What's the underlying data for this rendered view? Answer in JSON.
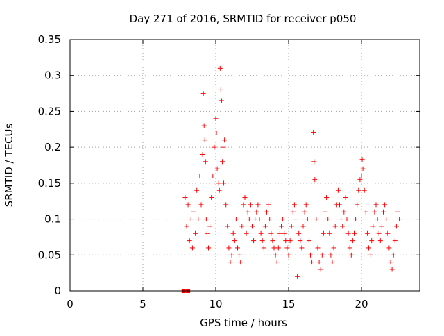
{
  "chart_data": {
    "type": "scatter",
    "title": "Day 271 of 2016, SRMTID for receiver p050",
    "xlabel": "GPS time / hours",
    "ylabel": "SRMTID / TECUs",
    "xlim": [
      0,
      24
    ],
    "ylim": [
      0,
      0.35
    ],
    "xticks": [
      "0",
      "5",
      "10",
      "15",
      "20"
    ],
    "yticks": [
      "0",
      "0.05",
      "0.1",
      "0.15",
      "0.2",
      "0.25",
      "0.3",
      "0.35"
    ],
    "grid": true,
    "legend": "none",
    "marker": "plus",
    "color": "#ff0000",
    "zero_markers": {
      "marker": "square",
      "x": [
        7.8,
        8.1
      ],
      "y": [
        0,
        0
      ]
    },
    "series": [
      {
        "x": [
          7.9,
          8.0,
          8.1,
          8.2,
          8.3,
          8.4,
          8.5,
          8.6,
          8.7,
          8.8,
          8.9,
          9.0,
          9.1,
          9.15,
          9.2,
          9.25,
          9.3,
          9.35,
          9.4,
          9.5,
          9.6,
          9.7,
          9.8,
          9.9,
          10.0,
          10.05,
          10.1,
          10.2,
          10.25,
          10.3,
          10.35,
          10.4,
          10.45,
          10.5,
          10.55,
          10.6,
          10.7,
          10.8,
          10.9,
          11.0,
          11.1,
          11.2,
          11.3,
          11.4,
          11.5,
          11.6,
          11.7,
          11.8,
          11.9,
          12.0,
          12.1,
          12.2,
          12.3,
          12.4,
          12.5,
          12.6,
          12.7,
          12.8,
          12.9,
          13.0,
          13.1,
          13.2,
          13.3,
          13.4,
          13.5,
          13.6,
          13.7,
          13.8,
          13.9,
          14.0,
          14.1,
          14.2,
          14.3,
          14.4,
          14.5,
          14.6,
          14.7,
          14.8,
          14.9,
          15.0,
          15.1,
          15.2,
          15.3,
          15.4,
          15.5,
          15.6,
          15.7,
          15.8,
          15.9,
          16.0,
          16.1,
          16.2,
          16.3,
          16.4,
          16.5,
          16.6,
          16.7,
          16.75,
          16.8,
          16.9,
          17.0,
          17.1,
          17.2,
          17.3,
          17.4,
          17.5,
          17.6,
          17.7,
          17.8,
          17.9,
          18.0,
          18.1,
          18.2,
          18.3,
          18.4,
          18.5,
          18.6,
          18.7,
          18.8,
          18.9,
          19.0,
          19.1,
          19.2,
          19.3,
          19.4,
          19.5,
          19.6,
          19.7,
          19.8,
          19.9,
          20.0,
          20.05,
          20.1,
          20.2,
          20.3,
          20.4,
          20.5,
          20.6,
          20.7,
          20.8,
          20.9,
          21.0,
          21.1,
          21.2,
          21.3,
          21.4,
          21.5,
          21.6,
          21.7,
          21.8,
          21.9,
          22.0,
          22.1,
          22.2,
          22.3,
          22.4,
          22.5,
          22.6
        ],
        "y": [
          0.13,
          0.09,
          0.12,
          0.07,
          0.1,
          0.06,
          0.11,
          0.08,
          0.14,
          0.1,
          0.16,
          0.12,
          0.19,
          0.275,
          0.23,
          0.21,
          0.18,
          0.1,
          0.08,
          0.06,
          0.09,
          0.13,
          0.16,
          0.2,
          0.24,
          0.22,
          0.17,
          0.15,
          0.14,
          0.31,
          0.28,
          0.265,
          0.18,
          0.2,
          0.15,
          0.21,
          0.12,
          0.09,
          0.06,
          0.04,
          0.05,
          0.08,
          0.07,
          0.1,
          0.06,
          0.05,
          0.04,
          0.09,
          0.12,
          0.13,
          0.08,
          0.11,
          0.1,
          0.12,
          0.09,
          0.07,
          0.1,
          0.11,
          0.12,
          0.1,
          0.08,
          0.07,
          0.06,
          0.09,
          0.11,
          0.12,
          0.1,
          0.08,
          0.07,
          0.06,
          0.05,
          0.04,
          0.06,
          0.08,
          0.09,
          0.1,
          0.08,
          0.07,
          0.06,
          0.05,
          0.07,
          0.09,
          0.11,
          0.12,
          0.1,
          0.02,
          0.08,
          0.07,
          0.06,
          0.09,
          0.11,
          0.12,
          0.1,
          0.07,
          0.05,
          0.04,
          0.221,
          0.18,
          0.155,
          0.1,
          0.06,
          0.04,
          0.03,
          0.05,
          0.08,
          0.11,
          0.13,
          0.1,
          0.08,
          0.05,
          0.04,
          0.06,
          0.09,
          0.12,
          0.14,
          0.12,
          0.1,
          0.09,
          0.11,
          0.13,
          0.1,
          0.08,
          0.06,
          0.05,
          0.07,
          0.08,
          0.1,
          0.12,
          0.14,
          0.155,
          0.16,
          0.183,
          0.17,
          0.14,
          0.11,
          0.08,
          0.06,
          0.05,
          0.07,
          0.09,
          0.11,
          0.12,
          0.1,
          0.08,
          0.07,
          0.09,
          0.11,
          0.12,
          0.1,
          0.08,
          0.06,
          0.04,
          0.03,
          0.05,
          0.07,
          0.09,
          0.11,
          0.1
        ]
      }
    ]
  }
}
